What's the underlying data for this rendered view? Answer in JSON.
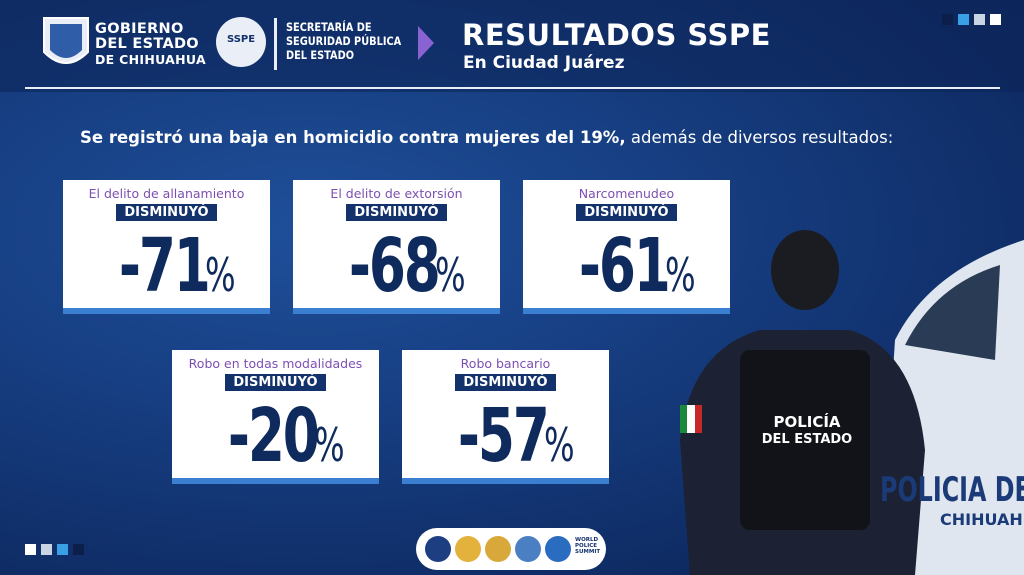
{
  "header": {
    "gov_lines": [
      "GOBIERNO",
      "DEL ESTADO",
      "DE CHIHUAHUA"
    ],
    "sspe_logo": "SSPE",
    "secretaria_lines": [
      "SECRETARÍA DE",
      "SEGURIDAD PÚBLICA",
      "DEL ESTADO"
    ],
    "title": "RESULTADOS SSPE",
    "subtitle": "En Ciudad Juárez"
  },
  "headline": {
    "bold": "Se registró una baja en homicidio contra mujeres del 19%,",
    "regular": "además de diversos resultados:"
  },
  "cards": [
    {
      "label": "El delito de allanamiento",
      "badge": "DISMINUYÓ",
      "value": "-71",
      "unit": "%"
    },
    {
      "label": "El delito de extorsión",
      "badge": "DISMINUYÓ",
      "value": "-68",
      "unit": "%"
    },
    {
      "label": "Narcomenudeo",
      "badge": "DISMINUYÓ",
      "value": "-61",
      "unit": "%"
    },
    {
      "label": "Robo en todas modalidades",
      "badge": "DISMINUYÓ",
      "value": "-20",
      "unit": "%"
    },
    {
      "label": "Robo bancario",
      "badge": "DISMINUYÓ",
      "value": "-57",
      "unit": "%"
    }
  ],
  "photo": {
    "vest_lines": [
      "POLICÍA",
      "DEL ESTADO"
    ],
    "car_lines": [
      "POLICIA DEL ESTADO",
      "CHIHUAHUA"
    ]
  },
  "footer": {
    "summit_lines": [
      "WORLD",
      "POLICE",
      "SUMMIT"
    ]
  }
}
